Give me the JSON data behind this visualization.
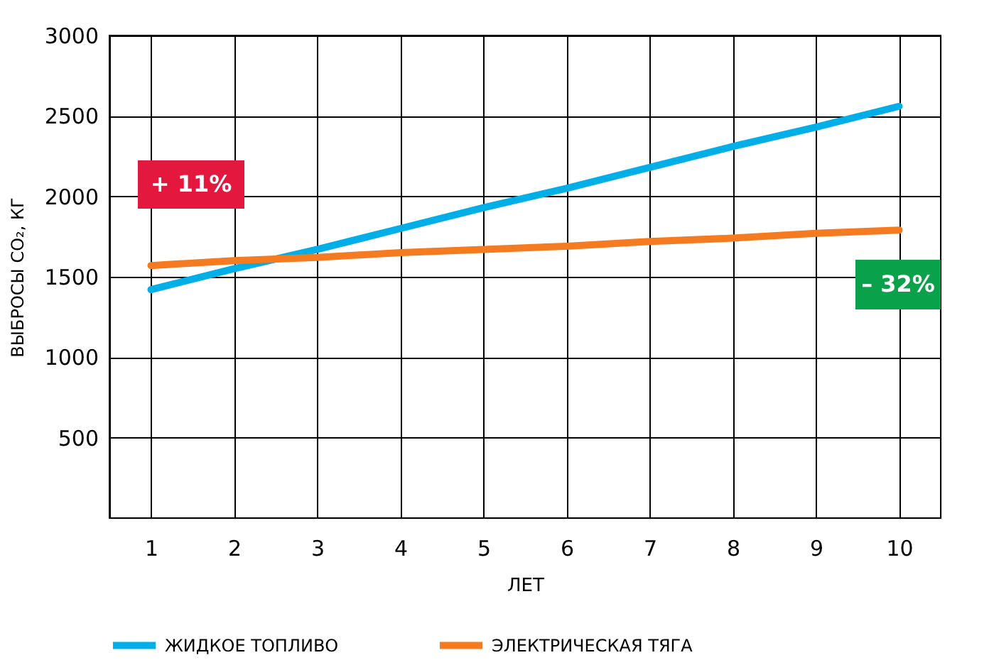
{
  "chart_data": {
    "type": "line",
    "xlabel": "ЛЕТ",
    "ylabel": "ВЫБРОСЫ CO₂, КГ",
    "categories": [
      "1",
      "2",
      "3",
      "4",
      "5",
      "6",
      "7",
      "8",
      "9",
      "10"
    ],
    "series": [
      {
        "name": "ЖИДКОЕ ТОПЛИВО",
        "color": "#00aee8",
        "values": [
          1420,
          1550,
          1670,
          1800,
          1930,
          2050,
          2180,
          2310,
          2430,
          2560
        ]
      },
      {
        "name": "ЭЛЕКТРИЧЕСКАЯ ТЯГА",
        "color": "#f47b20",
        "values": [
          1570,
          1600,
          1620,
          1650,
          1670,
          1690,
          1720,
          1740,
          1770,
          1790
        ]
      }
    ],
    "ylim": [
      0,
      3000
    ],
    "yticks": [
      500,
      1000,
      1500,
      2000,
      2500,
      3000
    ],
    "grid": true,
    "legend": "bottom",
    "marker": "none",
    "line_style": "solid",
    "annotations": [
      "+ 11%",
      "– 32%"
    ]
  }
}
